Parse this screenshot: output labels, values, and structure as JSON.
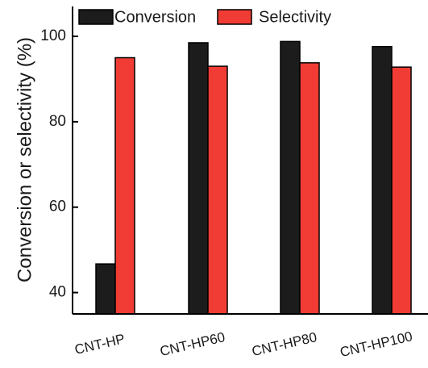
{
  "chart_data": {
    "type": "bar",
    "categories": [
      "CNT-HP",
      "CNT-HP60",
      "CNT-HP80",
      "CNT-HP100"
    ],
    "series": [
      {
        "name": "Conversion",
        "color": "#1c1c1c",
        "values": [
          46.7,
          98.5,
          98.8,
          97.6
        ]
      },
      {
        "name": "Selectivity",
        "color": "#f03c34",
        "values": [
          95.0,
          93.0,
          93.8,
          92.8
        ]
      }
    ],
    "xlabel": "",
    "ylabel": "Conversion or selectivity (%)",
    "ylim": [
      35,
      107
    ],
    "yticks": [
      40,
      60,
      80,
      100
    ],
    "yticks_labels": [
      "40",
      "60",
      "80",
      "100"
    ],
    "grid": false,
    "legend_position": "top"
  }
}
